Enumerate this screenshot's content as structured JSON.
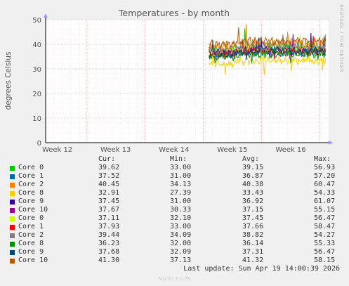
{
  "chart_data": {
    "type": "line",
    "title": "Temperatures - by month",
    "ylabel": "degrees Celsius",
    "xlabel": "",
    "ylim": [
      0,
      50
    ],
    "yticks": [
      "0",
      "10",
      "20",
      "30",
      "40",
      "50"
    ],
    "x_tick_labels": [
      "Week 12",
      "Week 13",
      "Week 14",
      "Week 15",
      "Week 16"
    ],
    "grid": true,
    "data_start_week": 14.6,
    "series": [
      {
        "name": "Core 0",
        "color": "#00cc00",
        "cur": "39.62",
        "min": "33.00",
        "avg": "39.15",
        "max": "56.93"
      },
      {
        "name": "Core 1",
        "color": "#0066b3",
        "cur": "37.52",
        "min": "31.00",
        "avg": "36.87",
        "max": "57.20"
      },
      {
        "name": "Core 2",
        "color": "#ff8000",
        "cur": "40.45",
        "min": "34.13",
        "avg": "40.38",
        "max": "60.47"
      },
      {
        "name": "Core 8",
        "color": "#ffcc00",
        "cur": "32.91",
        "min": "27.39",
        "avg": "33.43",
        "max": "54.33"
      },
      {
        "name": "Core 9",
        "color": "#330099",
        "cur": "37.45",
        "min": "31.00",
        "avg": "36.92",
        "max": "61.07"
      },
      {
        "name": "Core 10",
        "color": "#990099",
        "cur": "37.67",
        "min": "30.33",
        "avg": "37.15",
        "max": "55.15"
      },
      {
        "name": "Core 0",
        "color": "#ccff00",
        "cur": "37.11",
        "min": "32.10",
        "avg": "37.45",
        "max": "56.47"
      },
      {
        "name": "Core 1",
        "color": "#ff0000",
        "cur": "37.93",
        "min": "33.00",
        "avg": "37.66",
        "max": "58.47"
      },
      {
        "name": "Core 2",
        "color": "#808080",
        "cur": "39.44",
        "min": "34.09",
        "avg": "38.82",
        "max": "54.27"
      },
      {
        "name": "Core 8",
        "color": "#008f00",
        "cur": "36.23",
        "min": "32.00",
        "avg": "36.14",
        "max": "55.33"
      },
      {
        "name": "Core 9",
        "color": "#00487d",
        "cur": "37.68",
        "min": "32.09",
        "avg": "37.31",
        "max": "56.47"
      },
      {
        "name": "Core 10",
        "color": "#b35a00",
        "cur": "41.30",
        "min": "37.13",
        "avg": "41.32",
        "max": "58.15"
      }
    ]
  },
  "legend": {
    "col_cur": "Cur:",
    "col_min": "Min:",
    "col_avg": "Avg:",
    "col_max": "Max:"
  },
  "last_update": "Last update: Sun Apr 19 14:00:39 2026",
  "munin_version": "Munin 2.0.76",
  "watermark": "RRDTOOL / TOBI OETIKER"
}
